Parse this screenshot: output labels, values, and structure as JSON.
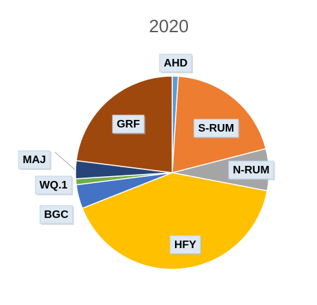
{
  "chart_data": {
    "type": "pie",
    "title": "2020",
    "categories": [
      "AHD",
      "S-RUM",
      "N-RUM",
      "HFY",
      "BGC",
      "WQ.1",
      "MAJ",
      "GRF"
    ],
    "values": [
      1,
      20,
      7,
      41,
      4,
      1,
      3,
      23
    ],
    "colors": [
      "#5b9bd5",
      "#ed7d31",
      "#a5a5a5",
      "#ffc000",
      "#4472c4",
      "#70ad47",
      "#264478",
      "#9e480e"
    ]
  }
}
